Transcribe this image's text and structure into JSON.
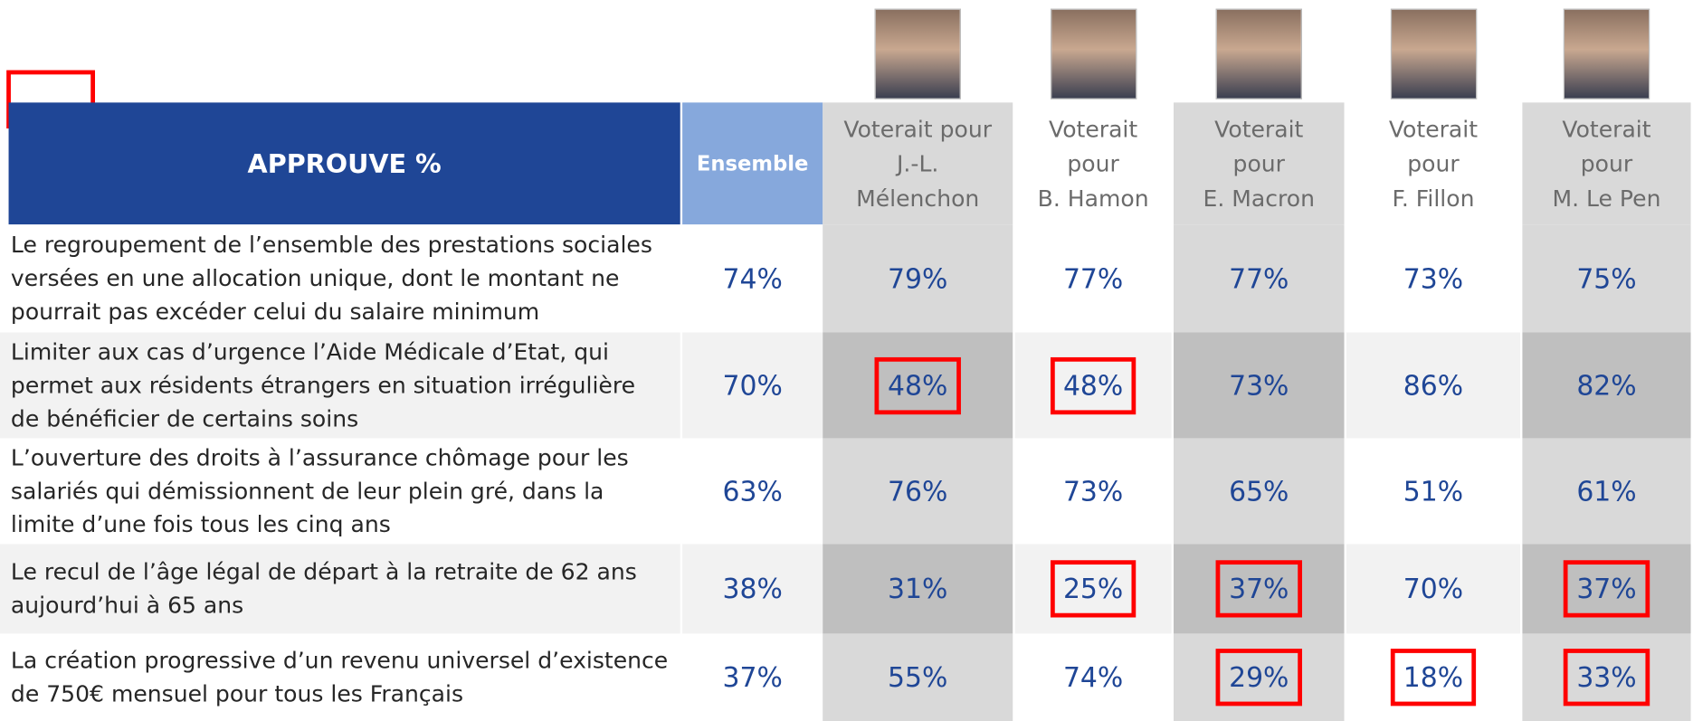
{
  "header": {
    "title": "APPROUVE %",
    "columns": [
      [
        "Ensemble"
      ],
      [
        "Voterait pour",
        "J.-L.",
        "Mélenchon"
      ],
      [
        "Voterait",
        "pour",
        "B. Hamon"
      ],
      [
        "Voterait",
        "pour",
        "E. Macron"
      ],
      [
        "Voterait",
        "pour",
        "F. Fillon"
      ],
      [
        "Voterait",
        "pour",
        "M. Le Pen"
      ]
    ]
  },
  "table": {
    "rows": [
      {
        "label": [
          "Le regroupement de l’ensemble des prestations sociales",
          "versées en une allocation unique, dont le montant ne",
          "pourrait pas excéder celui du salaire minimum"
        ],
        "values": [
          "74%",
          "79%",
          "77%",
          "77%",
          "73%",
          "75%"
        ]
      },
      {
        "label": [
          "Limiter aux cas d’urgence l’Aide Médicale d’Etat, qui",
          "permet aux résidents étrangers en situation irrégulière",
          "de bénéficier de certains soins"
        ],
        "values": [
          "70%",
          "48%",
          "48%",
          "73%",
          "86%",
          "82%"
        ]
      },
      {
        "label": [
          "L’ouverture des droits à l’assurance chômage pour les",
          "salariés qui démissionnent de leur plein gré, dans la",
          "limite d’une fois tous les cinq ans"
        ],
        "values": [
          "63%",
          "76%",
          "73%",
          "65%",
          "51%",
          "61%"
        ]
      },
      {
        "label": [
          "Le recul de l’âge légal de départ à la retraite de 62 ans",
          "aujourd’hui à 65 ans"
        ],
        "values": [
          "38%",
          "31%",
          "25%",
          "37%",
          "70%",
          "37%"
        ]
      },
      {
        "label": [
          "La création progressive d’un revenu universel d’existence",
          "de 750€ mensuel pour tous les Français"
        ],
        "values": [
          "37%",
          "55%",
          "74%",
          "29%",
          "18%",
          "33%"
        ]
      }
    ]
  }
}
